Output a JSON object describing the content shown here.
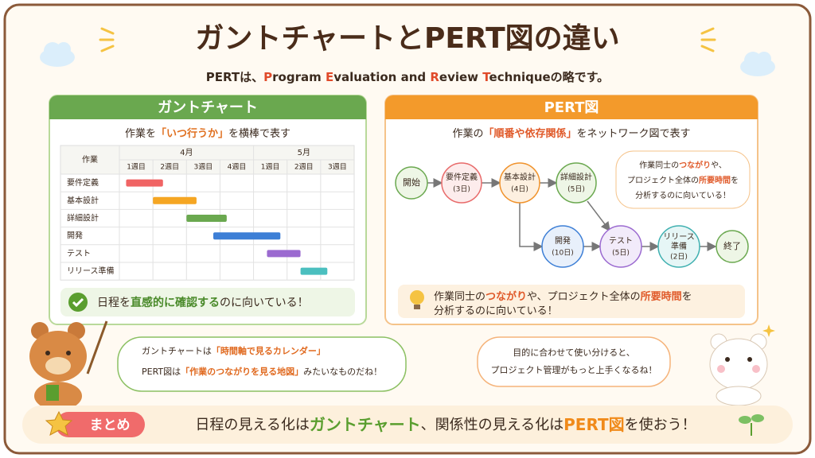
{
  "header": {
    "title": "ガントチャートとPERT図の違い",
    "subtitle": [
      {
        "text": "PERTは、"
      },
      {
        "text": "P",
        "em": "#e04a2a"
      },
      {
        "text": "rogram "
      },
      {
        "text": "E",
        "em": "#e04a2a"
      },
      {
        "text": "valuation and "
      },
      {
        "text": "R",
        "em": "#e04a2a"
      },
      {
        "text": "eview "
      },
      {
        "text": "T",
        "em": "#e04a2a"
      },
      {
        "text": "echnique"
      },
      {
        "text": "の略です。"
      }
    ]
  },
  "gantt_panel": {
    "heading": "ガントチャート",
    "description": [
      {
        "text": "作業を"
      },
      {
        "text": "「いつ行うか」",
        "em": "#e07020"
      },
      {
        "text": "を横棒で表す"
      }
    ],
    "table": {
      "task_header": "作業",
      "months": [
        {
          "label": "4月",
          "weeks": [
            "1週目",
            "2週目",
            "3週目",
            "4週目"
          ]
        },
        {
          "label": "5月",
          "weeks": [
            "1週目",
            "2週目",
            "3週目"
          ]
        }
      ],
      "tasks": [
        {
          "name": "要件定義",
          "start": 0.2,
          "end": 1.3,
          "color": "#f06464"
        },
        {
          "name": "基本設計",
          "start": 1.0,
          "end": 2.3,
          "color": "#f5a623"
        },
        {
          "name": "詳細設計",
          "start": 2.0,
          "end": 3.2,
          "color": "#6aa84f"
        },
        {
          "name": "開発",
          "start": 2.8,
          "end": 4.8,
          "color": "#3d7fd6"
        },
        {
          "name": "テスト",
          "start": 4.4,
          "end": 5.4,
          "color": "#9b6ad0"
        },
        {
          "name": "リリース準備",
          "start": 5.4,
          "end": 6.2,
          "color": "#4bbfbf"
        }
      ]
    },
    "note": [
      {
        "text": "日程を"
      },
      {
        "text": "直感的に確認する",
        "em": "#4a8a2a"
      },
      {
        "text": "のに向いている！"
      }
    ]
  },
  "pert_panel": {
    "heading": "PERT図",
    "description": [
      {
        "text": "作業の"
      },
      {
        "text": "「順番や依存関係」",
        "em": "#e05a2a"
      },
      {
        "text": "をネットワーク図で表す"
      }
    ],
    "nodes": [
      {
        "label": "開始"
      },
      {
        "label": "要件定義",
        "duration": "(3日)"
      },
      {
        "label": "基本設計",
        "duration": "(4日)"
      },
      {
        "label": "詳細設計",
        "duration": "(5日)"
      },
      {
        "label": "開発",
        "duration": "(10日)"
      },
      {
        "label": "テスト",
        "duration": "(5日)"
      },
      {
        "label": "リリース準備",
        "duration": "(2日)"
      },
      {
        "label": "終了"
      }
    ],
    "callout": [
      [
        {
          "text": "作業同士の"
        },
        {
          "text": "つながり",
          "em": "#e05a2a"
        },
        {
          "text": "や、"
        }
      ],
      [
        {
          "text": "プロジェクト全体の"
        },
        {
          "text": "所要時間",
          "em": "#e05a2a"
        },
        {
          "text": "を"
        }
      ],
      [
        {
          "text": "分析するのに向いている！"
        }
      ]
    ],
    "note": [
      [
        {
          "text": "作業同士の"
        },
        {
          "text": "つながり",
          "em": "#e05a2a"
        },
        {
          "text": "や、プロジェクト全体の"
        },
        {
          "text": "所要時間",
          "em": "#e05a2a"
        },
        {
          "text": "を"
        }
      ],
      [
        {
          "text": "分析するのに向いている！"
        }
      ]
    ]
  },
  "bear_bubble": [
    [
      {
        "text": "ガントチャートは"
      },
      {
        "text": "「時間軸で見るカレンダー」",
        "em": "#e06a20"
      }
    ],
    [
      {
        "text": "PERT図は"
      },
      {
        "text": "「作業のつながりを見る地図」",
        "em": "#e06a20"
      },
      {
        "text": "みたいなものだね！"
      }
    ]
  ],
  "bunny_bubble": [
    [
      {
        "text": "目的に合わせて使い分けると、"
      }
    ],
    [
      {
        "text": "プロジェクト管理がもっと上手くなるね！"
      }
    ]
  ],
  "summary": {
    "badge": "まとめ",
    "text": [
      {
        "text": "日程の見える化は"
      },
      {
        "text": "ガントチャート",
        "em": "#5a9e2f"
      },
      {
        "text": "、関係性の見える化は"
      },
      {
        "text": "PERT図",
        "em": "#f08a1a"
      },
      {
        "text": "を使おう！"
      }
    ]
  }
}
